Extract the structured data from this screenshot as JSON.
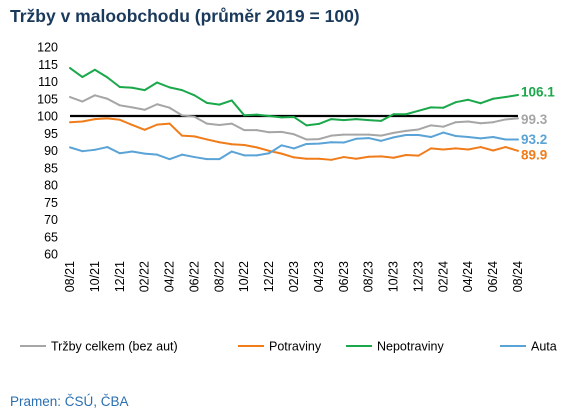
{
  "chart_data": {
    "type": "line",
    "title": "Tržby v maloobchodu (průměr 2019 = 100)",
    "source": "Pramen: ČSÚ, ČBA",
    "ylim": [
      60,
      120
    ],
    "yticks": [
      60,
      65,
      70,
      75,
      80,
      85,
      90,
      95,
      100,
      105,
      110,
      115,
      120
    ],
    "xtick_labels": [
      "08/21",
      "10/21",
      "12/21",
      "02/22",
      "04/22",
      "06/22",
      "08/22",
      "10/22",
      "12/22",
      "02/23",
      "04/23",
      "06/23",
      "08/23",
      "10/23",
      "12/23",
      "02/24",
      "04/24",
      "06/24",
      "08/24"
    ],
    "x": [
      "08/21",
      "09/21",
      "10/21",
      "11/21",
      "12/21",
      "01/22",
      "02/22",
      "03/22",
      "04/22",
      "05/22",
      "06/22",
      "07/22",
      "08/22",
      "09/22",
      "10/22",
      "11/22",
      "12/22",
      "01/23",
      "02/23",
      "03/23",
      "04/23",
      "05/23",
      "06/23",
      "07/23",
      "08/23",
      "09/23",
      "10/23",
      "11/23",
      "12/23",
      "01/24",
      "02/24",
      "03/24",
      "04/24",
      "05/24",
      "06/24",
      "07/24",
      "08/24"
    ],
    "reference_line": {
      "value": 100,
      "color": "#000000"
    },
    "legend_position": "bottom",
    "grid": false,
    "series": [
      {
        "name": "Tržby celkem (bez aut)",
        "color": "#a6a6a6",
        "end_label": "99.3",
        "values": [
          105.5,
          104.2,
          106,
          105,
          103.1,
          102.5,
          101.8,
          103.4,
          102.4,
          100.2,
          99.8,
          97.8,
          97.4,
          97.8,
          95.9,
          95.9,
          95.3,
          95.4,
          94.7,
          93.2,
          93.3,
          94.3,
          94.6,
          94.6,
          94.6,
          94.3,
          95.1,
          95.7,
          96.1,
          97.3,
          96.9,
          98.2,
          98.4,
          97.9,
          98.2,
          99,
          99.3
        ]
      },
      {
        "name": "Potraviny",
        "color": "#f07c1a",
        "end_label": "89.9",
        "values": [
          98.2,
          98.4,
          99.1,
          99.3,
          98.9,
          97.4,
          96,
          97.5,
          97.8,
          94.3,
          94.1,
          93.2,
          92.4,
          91.8,
          91.6,
          90.9,
          89.9,
          89.1,
          88,
          87.6,
          87.6,
          87.3,
          88.1,
          87.6,
          88.2,
          88.3,
          87.9,
          88.7,
          88.5,
          90.6,
          90.3,
          90.6,
          90.3,
          91,
          90,
          91,
          89.9
        ]
      },
      {
        "name": "Nepotraviny",
        "color": "#1aa84a",
        "end_label": "106.1",
        "values": [
          113.9,
          111.3,
          113.4,
          111.2,
          108.4,
          108.2,
          107.5,
          109.7,
          108.3,
          107.5,
          106,
          103.8,
          103.3,
          104.5,
          100.2,
          100.4,
          100,
          99.6,
          99.7,
          97.3,
          97.7,
          99.1,
          98.8,
          99.1,
          98.8,
          98.6,
          100.5,
          100.5,
          101.5,
          102.5,
          102.4,
          104,
          104.7,
          103.7,
          105,
          105.5,
          106.1
        ]
      },
      {
        "name": "Auta",
        "color": "#5aa3d6",
        "end_label": "93.2",
        "values": [
          90.9,
          89.8,
          90.2,
          91,
          89.2,
          89.7,
          89.1,
          88.8,
          87.5,
          88.8,
          88.1,
          87.5,
          87.5,
          89.7,
          88.6,
          88.6,
          89.2,
          91.5,
          90.6,
          91.9,
          92,
          92.4,
          92.3,
          93.4,
          93.6,
          92.8,
          93.8,
          94.5,
          94.5,
          93.9,
          95.2,
          94.2,
          93.9,
          93.5,
          93.9,
          93.2,
          93.2
        ]
      }
    ]
  }
}
